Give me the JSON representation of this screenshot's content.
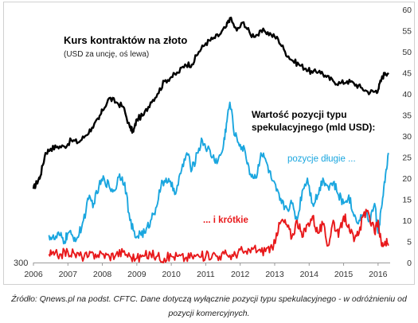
{
  "caption": "Źródło: Qnews.pl na podst. CFTC. Dane dotyczą wyłącznie pozycji typu spekulacyjnego - w odróżnieniu od pozycji komercyjnych.",
  "colors": {
    "gold": "#000000",
    "long": "#1aa6df",
    "short": "#e8191b",
    "axis_text": "#333333"
  },
  "chart_data": {
    "type": "line",
    "annotations": {
      "gold_title": "Kurs kontraktów na złoto",
      "gold_subtitle": "(USD za uncję, oś lewa)",
      "positions_title_line1": "Wartość pozycji typu",
      "positions_title_line2": "spekulacyjnego (mld USD):",
      "long_label": "pozycje długie ...",
      "short_label": "... i krótkie",
      "left_axis_label": "300"
    },
    "x_ticks": [
      "2006",
      "2007",
      "2008",
      "2009",
      "2010",
      "2011",
      "2012",
      "2013",
      "2014",
      "2015",
      "2016"
    ],
    "xlim": [
      2006,
      2016.35
    ],
    "right_axis": {
      "ylim": [
        0,
        60
      ],
      "ticks": [
        "0",
        "5",
        "10",
        "15",
        "20",
        "25",
        "30",
        "35",
        "40",
        "45",
        "50",
        "55",
        "60"
      ]
    },
    "series": [
      {
        "axis": "right",
        "x": [
          2006.0,
          2006.1,
          2006.2,
          2006.35,
          2006.5,
          2006.7,
          2006.9,
          2007.1,
          2007.3,
          2007.5,
          2007.7,
          2007.9,
          2008.0,
          2008.2,
          2008.4,
          2008.6,
          2008.8,
          2008.9,
          2009.0,
          2009.2,
          2009.4,
          2009.6,
          2009.8,
          2010.0,
          2010.2,
          2010.4,
          2010.6,
          2010.8,
          2011.0,
          2011.2,
          2011.4,
          2011.6,
          2011.7,
          2011.9,
          2012.1,
          2012.3,
          2012.5,
          2012.7,
          2012.9,
          2013.1,
          2013.3,
          2013.5,
          2013.7,
          2013.9,
          2014.1,
          2014.3,
          2014.5,
          2014.7,
          2014.9,
          2015.1,
          2015.3,
          2015.5,
          2015.7,
          2015.9,
          2016.0,
          2016.1,
          2016.2,
          2016.3
        ],
        "values": [
          17.5,
          19,
          20.5,
          26,
          27,
          27.5,
          27.5,
          29,
          28.5,
          30,
          32,
          34,
          36,
          39,
          38,
          37,
          32,
          31,
          34,
          35,
          38,
          40,
          43,
          44,
          45,
          47,
          47,
          50,
          52,
          53,
          54,
          56,
          58,
          55,
          57,
          54,
          54,
          55,
          54,
          53,
          50,
          48,
          47,
          46,
          45,
          45.5,
          44,
          43,
          42.5,
          43,
          42.5,
          41.5,
          40.5,
          40.5,
          41,
          43.5,
          45,
          45
        ]
      },
      {
        "axis": "right",
        "x": [
          2006.45,
          2006.6,
          2006.75,
          2006.9,
          2007.0,
          2007.15,
          2007.3,
          2007.45,
          2007.6,
          2007.75,
          2007.9,
          2008.05,
          2008.2,
          2008.35,
          2008.5,
          2008.65,
          2008.8,
          2008.95,
          2009.1,
          2009.25,
          2009.4,
          2009.55,
          2009.7,
          2009.85,
          2010.0,
          2010.15,
          2010.3,
          2010.45,
          2010.6,
          2010.75,
          2010.9,
          2011.05,
          2011.2,
          2011.35,
          2011.5,
          2011.6,
          2011.7,
          2011.85,
          2012.0,
          2012.15,
          2012.3,
          2012.45,
          2012.6,
          2012.75,
          2012.9,
          2013.05,
          2013.2,
          2013.35,
          2013.5,
          2013.65,
          2013.8,
          2013.95,
          2014.1,
          2014.25,
          2014.4,
          2014.55,
          2014.7,
          2014.85,
          2015.0,
          2015.15,
          2015.3,
          2015.45,
          2015.6,
          2015.75,
          2015.9,
          2016.0,
          2016.1,
          2016.2,
          2016.3
        ],
        "values": [
          6.5,
          5.5,
          6.5,
          5,
          7,
          6,
          6,
          10,
          15,
          14,
          18,
          20,
          18,
          17,
          21,
          19,
          10,
          6,
          7,
          7,
          10,
          13,
          18,
          20,
          18,
          17,
          22,
          26,
          22,
          26,
          29,
          27,
          25,
          24,
          27,
          33,
          38,
          30,
          28,
          26,
          21,
          20,
          26,
          24,
          20,
          17,
          14,
          13,
          14,
          10,
          17,
          20,
          14,
          16,
          20,
          18,
          19,
          16,
          14,
          16,
          11,
          10,
          12,
          10,
          14,
          7,
          13,
          19,
          26
        ]
      },
      {
        "axis": "right",
        "x": [
          2006.45,
          2006.6,
          2006.8,
          2007.0,
          2007.2,
          2007.4,
          2007.6,
          2007.8,
          2008.0,
          2008.2,
          2008.4,
          2008.6,
          2008.8,
          2009.0,
          2009.2,
          2009.4,
          2009.6,
          2009.8,
          2010.0,
          2010.2,
          2010.4,
          2010.6,
          2010.8,
          2011.0,
          2011.2,
          2011.4,
          2011.6,
          2011.8,
          2012.0,
          2012.2,
          2012.4,
          2012.6,
          2012.8,
          2012.95,
          2013.05,
          2013.2,
          2013.35,
          2013.5,
          2013.65,
          2013.8,
          2013.95,
          2014.1,
          2014.25,
          2014.4,
          2014.55,
          2014.7,
          2014.85,
          2015.0,
          2015.15,
          2015.3,
          2015.45,
          2015.6,
          2015.75,
          2015.9,
          2016.0,
          2016.1,
          2016.2,
          2016.3
        ],
        "values": [
          2,
          1.8,
          2,
          2.5,
          2,
          1.5,
          1.5,
          2,
          2,
          1.5,
          2,
          2.5,
          1.5,
          1,
          1.5,
          2,
          1.5,
          1,
          1.5,
          1.5,
          1,
          1.5,
          1.5,
          1.5,
          2,
          1.5,
          2,
          1.5,
          3,
          2,
          3.5,
          2.5,
          3.5,
          3,
          7,
          10,
          9,
          6,
          10,
          6,
          9,
          11,
          7,
          9,
          4,
          10,
          6,
          11,
          9,
          5,
          7,
          12,
          11,
          7,
          10,
          4,
          5,
          4
        ]
      }
    ]
  }
}
